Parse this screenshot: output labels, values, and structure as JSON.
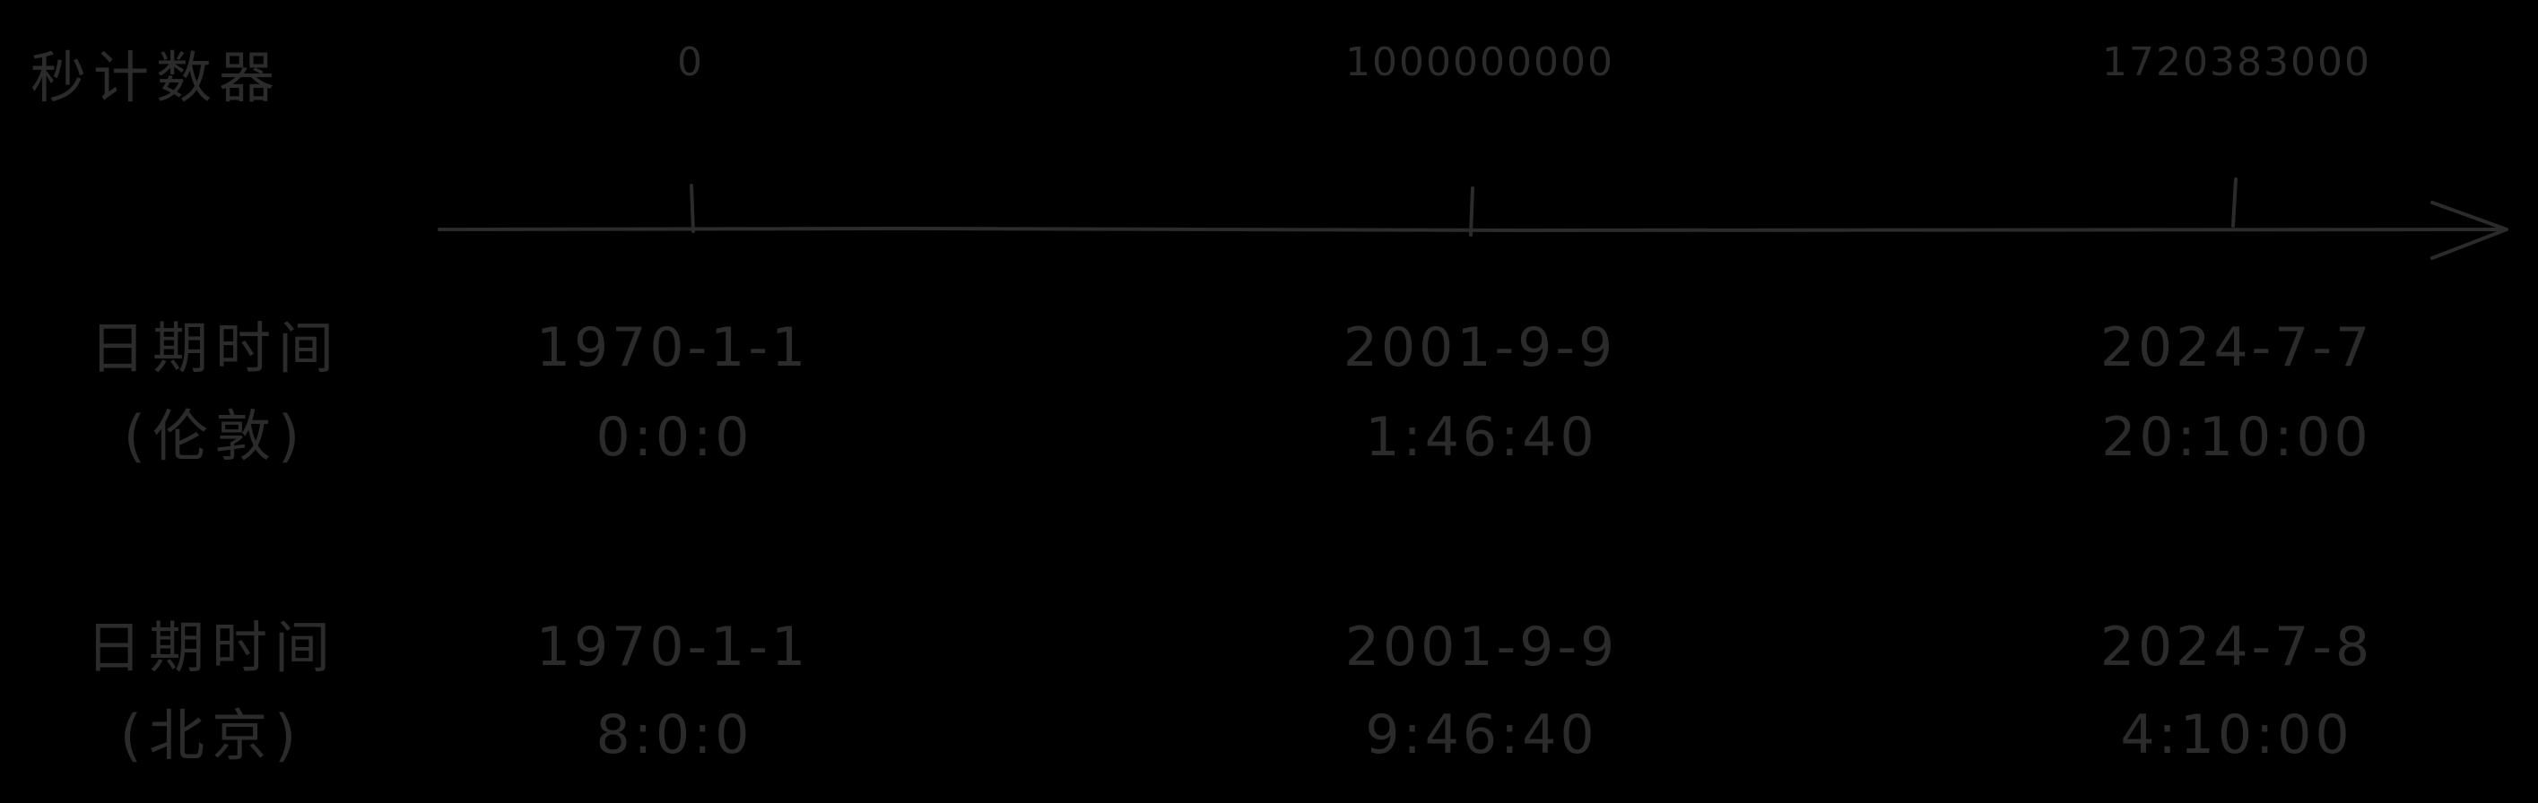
{
  "rows": {
    "counter_label": "秒计数器",
    "london_label_line1": "日期时间",
    "london_label_line2": "(伦敦)",
    "beijing_label_line1": "日期时间",
    "beijing_label_line2": "(北京)"
  },
  "ticks": [
    {
      "counter": "0",
      "london_date": "1970-1-1",
      "london_time": "0:0:0",
      "beijing_date": "1970-1-1",
      "beijing_time": "8:0:0"
    },
    {
      "counter": "1000000000",
      "london_date": "2001-9-9",
      "london_time": "1:46:40",
      "beijing_date": "2001-9-9",
      "beijing_time": "9:46:40"
    },
    {
      "counter": "1720383000",
      "london_date": "2024-7-7",
      "london_time": "20:10:00",
      "beijing_date": "2024-7-8",
      "beijing_time": "4:10:00"
    }
  ],
  "colors": {
    "background": "#000000",
    "ink": "#2b2b2b"
  }
}
